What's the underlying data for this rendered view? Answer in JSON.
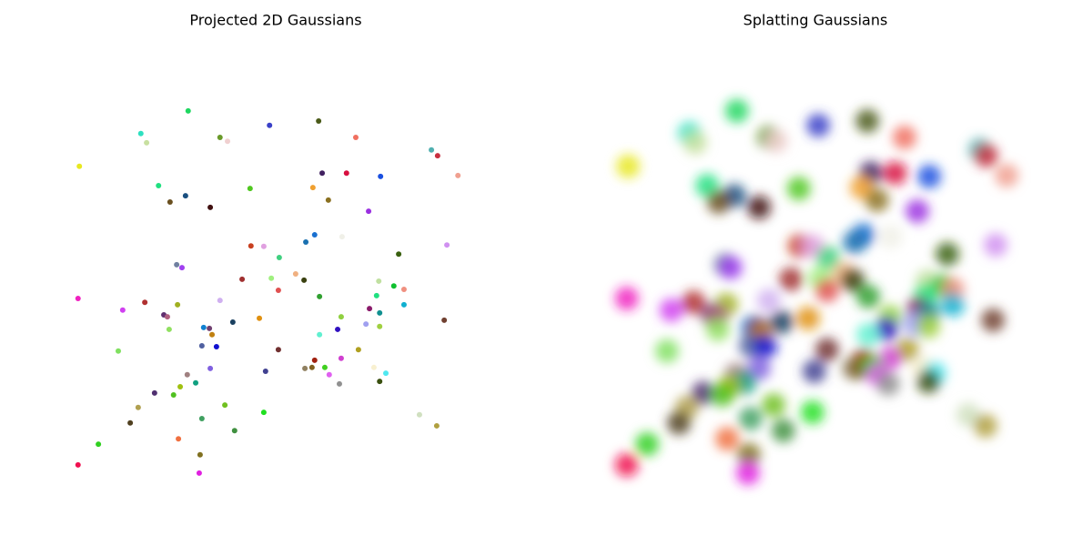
{
  "chart_data": [
    {
      "type": "scatter",
      "title": "Projected 2D Gaussians",
      "xlim": [
        0,
        100
      ],
      "ylim": [
        0,
        100
      ],
      "x": [
        30.2,
        19.5,
        20.8,
        37.4,
        39.1,
        48.6,
        59.7,
        68.1,
        85.2,
        86.6,
        91.2,
        5.6,
        23.5,
        29.6,
        26.1,
        35.2,
        44.2,
        60.5,
        66.0,
        73.7,
        58.4,
        61.9,
        71.0,
        58.8,
        56.8,
        65.0,
        44.4,
        47.3,
        77.8,
        88.7,
        50.8,
        27.6,
        28.8,
        49.0,
        54.5,
        56.4,
        42.4,
        50.6,
        73.3,
        76.7,
        79.0,
        59.9,
        72.8,
        79.0,
        5.3,
        15.4,
        20.4,
        27.8,
        24.7,
        25.5,
        37.4,
        71.2,
        73.5,
        64.8,
        46.3,
        40.3,
        70.4,
        73.5,
        25.9,
        33.7,
        35.0,
        64.0,
        59.9,
        35.6,
        88.1,
        14.4,
        33.3,
        36.6,
        50.6,
        68.7,
        58.8,
        64.8,
        35.2,
        47.7,
        56.6,
        58.2,
        61.1,
        62.1,
        72.2,
        74.9,
        73.5,
        64.4,
        30.0,
        31.9,
        28.4,
        22.6,
        26.9,
        38.5,
        18.9,
        47.3,
        33.3,
        17.1,
        40.7,
        82.5,
        86.4,
        9.9,
        28.0,
        32.9,
        5.3,
        32.7
      ],
      "y": [
        85.5,
        80.8,
        78.9,
        80.0,
        79.2,
        82.5,
        83.4,
        80.0,
        77.4,
        76.2,
        72.1,
        74.0,
        70.0,
        67.9,
        66.6,
        65.5,
        69.4,
        72.6,
        72.6,
        71.9,
        69.6,
        67.0,
        64.7,
        59.8,
        58.3,
        59.4,
        57.5,
        57.4,
        55.8,
        57.7,
        55.1,
        53.6,
        53.0,
        50.8,
        51.7,
        50.4,
        50.6,
        48.3,
        50.2,
        49.2,
        48.5,
        47.0,
        47.2,
        45.3,
        46.6,
        44.2,
        45.8,
        45.3,
        43.2,
        42.8,
        46.2,
        44.5,
        43.6,
        42.8,
        42.5,
        41.7,
        41.3,
        40.8,
        40.2,
        40.6,
        40.4,
        40.2,
        39.1,
        39.1,
        42.1,
        35.7,
        36.8,
        36.6,
        36.0,
        36.0,
        33.8,
        34.2,
        32.1,
        31.5,
        32.1,
        32.3,
        32.3,
        30.8,
        32.3,
        31.1,
        29.4,
        28.9,
        30.8,
        29.1,
        28.3,
        27.0,
        26.6,
        24.5,
        24.0,
        23.0,
        21.7,
        20.8,
        19.2,
        22.5,
        20.2,
        16.4,
        17.5,
        14.2,
        12.1,
        10.4
      ],
      "colors": [
        "#1ed760",
        "#2ee0c0",
        "#c8e0a0",
        "#6a9a2a",
        "#f0d0d0",
        "#3a40c8",
        "#4a5a18",
        "#f07060",
        "#50b0b0",
        "#c83040",
        "#f0a090",
        "#e8e820",
        "#20e080",
        "#1a5080",
        "#6a5020",
        "#401010",
        "#50c820",
        "#402060",
        "#d81040",
        "#1a50e0",
        "#f0a030",
        "#8a7020",
        "#9a30e0",
        "#1a70d0",
        "#1a70b0",
        "#f0f0e8",
        "#c84020",
        "#e0a0e0",
        "#3a6010",
        "#d090f0",
        "#40d080",
        "#7080a0",
        "#a040f0",
        "#a0f080",
        "#f0b080",
        "#3a4010",
        "#a03030",
        "#e05050",
        "#c0e0a0",
        "#10c030",
        "#f09080",
        "#30a030",
        "#20e080",
        "#10b0d0",
        "#f020c0",
        "#d040f0",
        "#b03030",
        "#a0b020",
        "#603070",
        "#b06080",
        "#d0b0f0",
        "#8a1a6a",
        "#109090",
        "#90d040",
        "#e09010",
        "#1a4060",
        "#a0a0f0",
        "#a0d040",
        "#90e060",
        "#1080d0",
        "#704070",
        "#3010c0",
        "#60f0d0",
        "#c08010",
        "#704030",
        "#80e060",
        "#5060a0",
        "#1010d0",
        "#703030",
        "#b0a020",
        "#a02010",
        "#d040d0",
        "#8060e0",
        "#404090",
        "#908060",
        "#806020",
        "#40d020",
        "#e060f0",
        "#f8f0d0",
        "#50e8f0",
        "#3a5010",
        "#909090",
        "#a08080",
        "#10a080",
        "#a0c010",
        "#503070",
        "#50c020",
        "#70c020",
        "#b0a050",
        "#20e020",
        "#40a060",
        "#504020",
        "#409040",
        "#d0e0c0",
        "#b0a040",
        "#30d020",
        "#f07040",
        "#807020",
        "#f01050",
        "#e020e0"
      ]
    },
    {
      "type": "splat",
      "title": "Splatting Gaussians"
    }
  ]
}
